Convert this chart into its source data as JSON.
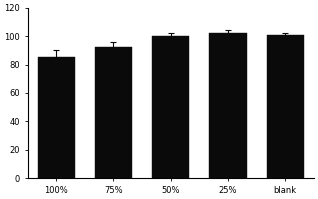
{
  "categories": [
    "100%",
    "75%",
    "50%",
    "25%",
    "blank"
  ],
  "values": [
    85,
    92,
    100,
    102,
    101
  ],
  "errors": [
    5,
    4,
    2.5,
    2.5,
    1.5
  ],
  "bar_color": "#0a0a0a",
  "error_color": "#0a0a0a",
  "ylim": [
    0,
    120
  ],
  "yticks": [
    0,
    20,
    40,
    60,
    80,
    100,
    120
  ],
  "bar_width": 0.65,
  "figsize": [
    3.18,
    1.99
  ],
  "dpi": 100,
  "background_color": "#ffffff",
  "tick_fontsize": 6,
  "spine_color": "#000000"
}
